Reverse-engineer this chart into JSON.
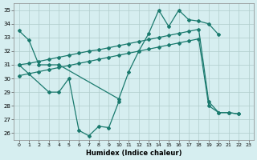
{
  "series1_x": [
    0,
    1,
    2,
    3,
    4,
    10,
    11,
    12,
    13,
    14,
    15,
    16,
    17,
    18,
    19,
    20
  ],
  "series1_y": [
    33.5,
    32.8,
    31.0,
    31.0,
    31.0,
    28.5,
    30.5,
    32.0,
    33.3,
    35.0,
    33.8,
    35.0,
    34.3,
    34.2,
    34.0,
    33.2
  ],
  "series2_x": [
    0,
    3,
    4,
    5,
    6,
    7,
    8,
    9,
    10
  ],
  "series2_y": [
    31.0,
    29.0,
    29.0,
    30.0,
    26.2,
    25.8,
    26.5,
    26.4,
    28.3
  ],
  "trend1_x": [
    0,
    1,
    2,
    3,
    4,
    5,
    6,
    7,
    8,
    9,
    10,
    11,
    12,
    13,
    14,
    15,
    16,
    17,
    18,
    19,
    20,
    21,
    22
  ],
  "trend1_y": [
    31.0,
    31.1,
    31.25,
    31.4,
    31.55,
    31.7,
    31.85,
    32.0,
    32.1,
    32.25,
    32.4,
    32.55,
    32.7,
    32.85,
    33.0,
    33.15,
    33.3,
    33.45,
    33.6,
    28.3,
    27.5,
    27.5,
    27.4
  ],
  "trend2_x": [
    0,
    1,
    2,
    3,
    4,
    5,
    6,
    7,
    8,
    9,
    10,
    11,
    12,
    13,
    14,
    15,
    16,
    17,
    18,
    19,
    20,
    21,
    22
  ],
  "trend2_y": [
    30.2,
    30.35,
    30.5,
    30.65,
    30.8,
    30.95,
    31.1,
    31.25,
    31.4,
    31.55,
    31.7,
    31.85,
    32.0,
    32.15,
    32.3,
    32.45,
    32.6,
    32.75,
    32.9,
    28.0,
    27.5,
    27.5,
    27.4
  ],
  "line_color": "#1a7a6e",
  "bg_color": "#d6eef0",
  "grid_color": "#b0cccc",
  "xlabel": "Humidex (Indice chaleur)",
  "ylim": [
    25.5,
    35.5
  ],
  "xlim": [
    -0.5,
    23.5
  ],
  "yticks": [
    26,
    27,
    28,
    29,
    30,
    31,
    32,
    33,
    34,
    35
  ],
  "xticks": [
    0,
    1,
    2,
    3,
    4,
    5,
    6,
    7,
    8,
    9,
    10,
    11,
    12,
    13,
    14,
    15,
    16,
    17,
    18,
    19,
    20,
    21,
    22,
    23
  ]
}
